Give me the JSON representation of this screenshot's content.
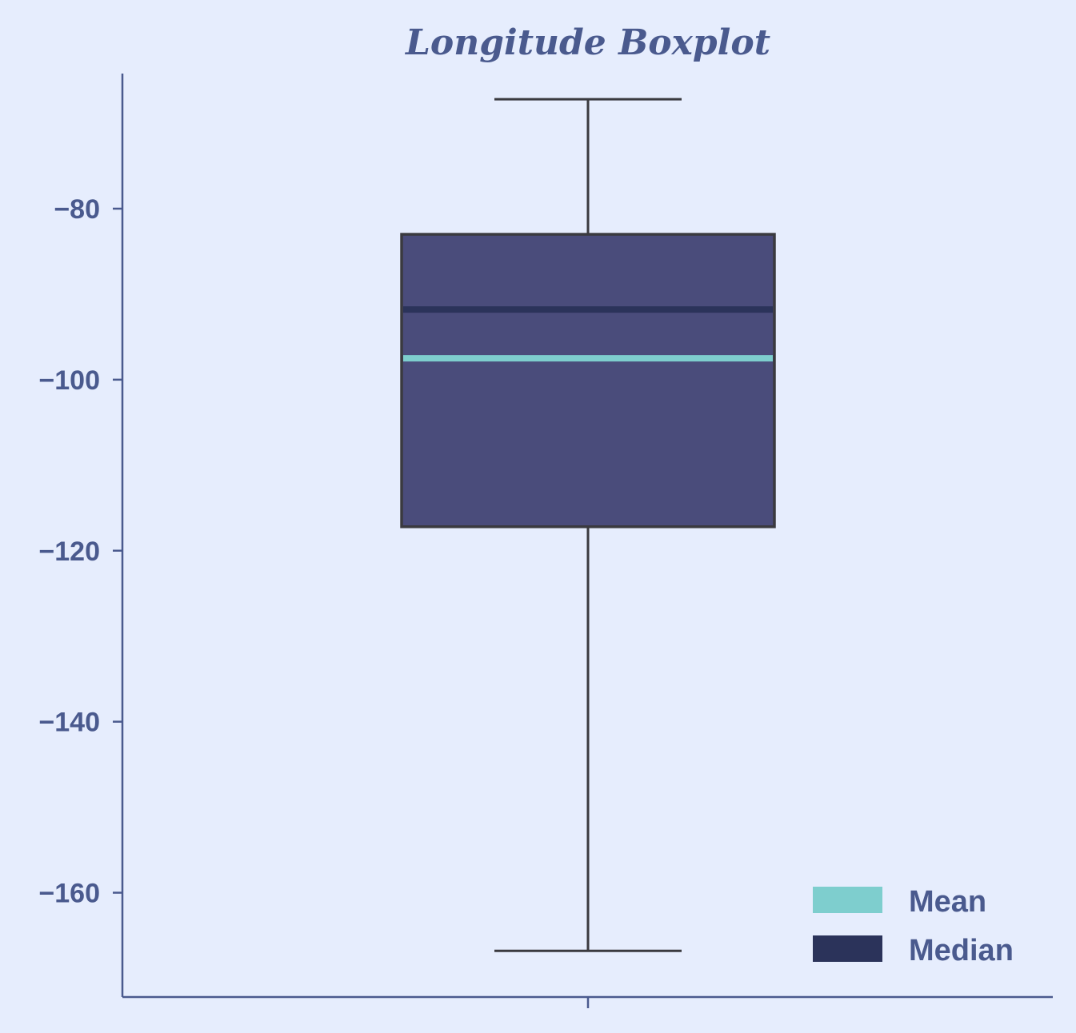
{
  "chart_data": {
    "type": "boxplot",
    "title": "Longitude Boxplot",
    "xlabel": "",
    "ylabel": "",
    "ylim": [
      -172.2,
      -64.2
    ],
    "yticks": [
      -80,
      -100,
      -120,
      -140,
      -160
    ],
    "ytick_labels": [
      "−80",
      "−100",
      "−120",
      "−140",
      "−160"
    ],
    "box": {
      "whisker_high": -67.2,
      "q3": -83.0,
      "median": -91.8,
      "mean": -97.5,
      "q1": -117.2,
      "whisker_low": -166.8
    },
    "legend": {
      "position": "bottom-right",
      "entries": [
        {
          "label": "Mean",
          "color": "#7ecece"
        },
        {
          "label": "Median",
          "color": "#2b335a"
        }
      ]
    },
    "colors": {
      "background": "#e6edfd",
      "axis": "#4a5a8e",
      "box_fill": "#4a4c7b",
      "box_edge": "#3a3a3f",
      "mean_line": "#7ecece",
      "median_line": "#2b335a"
    },
    "grid": false
  }
}
